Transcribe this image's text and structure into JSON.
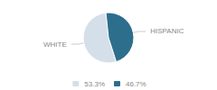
{
  "chart_data": {
    "type": "pie",
    "categories": [
      "WHITE",
      "HISPANIC"
    ],
    "values": [
      53.3,
      46.7
    ],
    "value_labels": [
      "53.3%",
      "46.7%"
    ],
    "colors": [
      "#d4dfe9",
      "#2d6e8d"
    ],
    "legend": "bottom"
  }
}
